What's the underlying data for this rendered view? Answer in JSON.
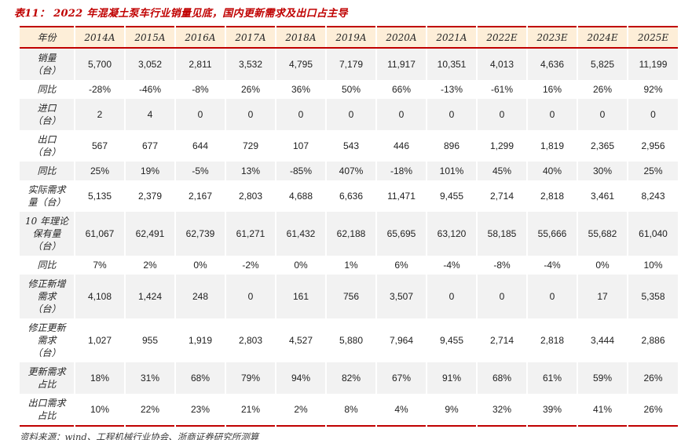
{
  "title": "表11： 2022 年混凝土泵车行业销量见底，国内更新需求及出口占主导",
  "source": "资料来源：wind、工程机械行业协会、浙商证券研究所测算",
  "colors": {
    "accent_red": "#c00000",
    "header_bg": "#fdeed8",
    "stripe_bg": "#f2f2f2"
  },
  "table": {
    "columns": [
      "年份",
      "2014A",
      "2015A",
      "2016A",
      "2017A",
      "2018A",
      "2019A",
      "2020A",
      "2021A",
      "2022E",
      "2023E",
      "2024E",
      "2025E"
    ],
    "rows": [
      {
        "label": "销量\n（台）",
        "values": [
          "5,700",
          "3,052",
          "2,811",
          "3,532",
          "4,795",
          "7,179",
          "11,917",
          "10,351",
          "4,013",
          "4,636",
          "5,825",
          "11,199"
        ]
      },
      {
        "label": "同比",
        "values": [
          "-28%",
          "-46%",
          "-8%",
          "26%",
          "36%",
          "50%",
          "66%",
          "-13%",
          "-61%",
          "16%",
          "26%",
          "92%"
        ]
      },
      {
        "label": "进口\n（台）",
        "values": [
          "2",
          "4",
          "0",
          "0",
          "0",
          "0",
          "0",
          "0",
          "0",
          "0",
          "0",
          "0"
        ]
      },
      {
        "label": "出口\n（台）",
        "values": [
          "567",
          "677",
          "644",
          "729",
          "107",
          "543",
          "446",
          "896",
          "1,299",
          "1,819",
          "2,365",
          "2,956"
        ]
      },
      {
        "label": "同比",
        "values": [
          "25%",
          "19%",
          "-5%",
          "13%",
          "-85%",
          "407%",
          "-18%",
          "101%",
          "45%",
          "40%",
          "30%",
          "25%"
        ]
      },
      {
        "label": "实际需求\n量（台）",
        "values": [
          "5,135",
          "2,379",
          "2,167",
          "2,803",
          "4,688",
          "6,636",
          "11,471",
          "9,455",
          "2,714",
          "2,818",
          "3,461",
          "8,243"
        ]
      },
      {
        "label": "10 年理论\n保有量\n（台）",
        "values": [
          "61,067",
          "62,491",
          "62,739",
          "61,271",
          "61,432",
          "62,188",
          "65,695",
          "63,120",
          "58,185",
          "55,666",
          "55,682",
          "61,040"
        ]
      },
      {
        "label": "同比",
        "values": [
          "7%",
          "2%",
          "0%",
          "-2%",
          "0%",
          "1%",
          "6%",
          "-4%",
          "-8%",
          "-4%",
          "0%",
          "10%"
        ]
      },
      {
        "label": "修正新增\n需求\n（台）",
        "values": [
          "4,108",
          "1,424",
          "248",
          "0",
          "161",
          "756",
          "3,507",
          "0",
          "0",
          "0",
          "17",
          "5,358"
        ]
      },
      {
        "label": "修正更新\n需求\n（台）",
        "values": [
          "1,027",
          "955",
          "1,919",
          "2,803",
          "4,527",
          "5,880",
          "7,964",
          "9,455",
          "2,714",
          "2,818",
          "3,444",
          "2,886"
        ]
      },
      {
        "label": "更新需求\n占比",
        "values": [
          "18%",
          "31%",
          "68%",
          "79%",
          "94%",
          "82%",
          "67%",
          "91%",
          "68%",
          "61%",
          "59%",
          "26%"
        ]
      },
      {
        "label": "出口需求\n占比",
        "values": [
          "10%",
          "22%",
          "23%",
          "21%",
          "2%",
          "8%",
          "4%",
          "9%",
          "32%",
          "39%",
          "41%",
          "26%"
        ]
      }
    ]
  }
}
